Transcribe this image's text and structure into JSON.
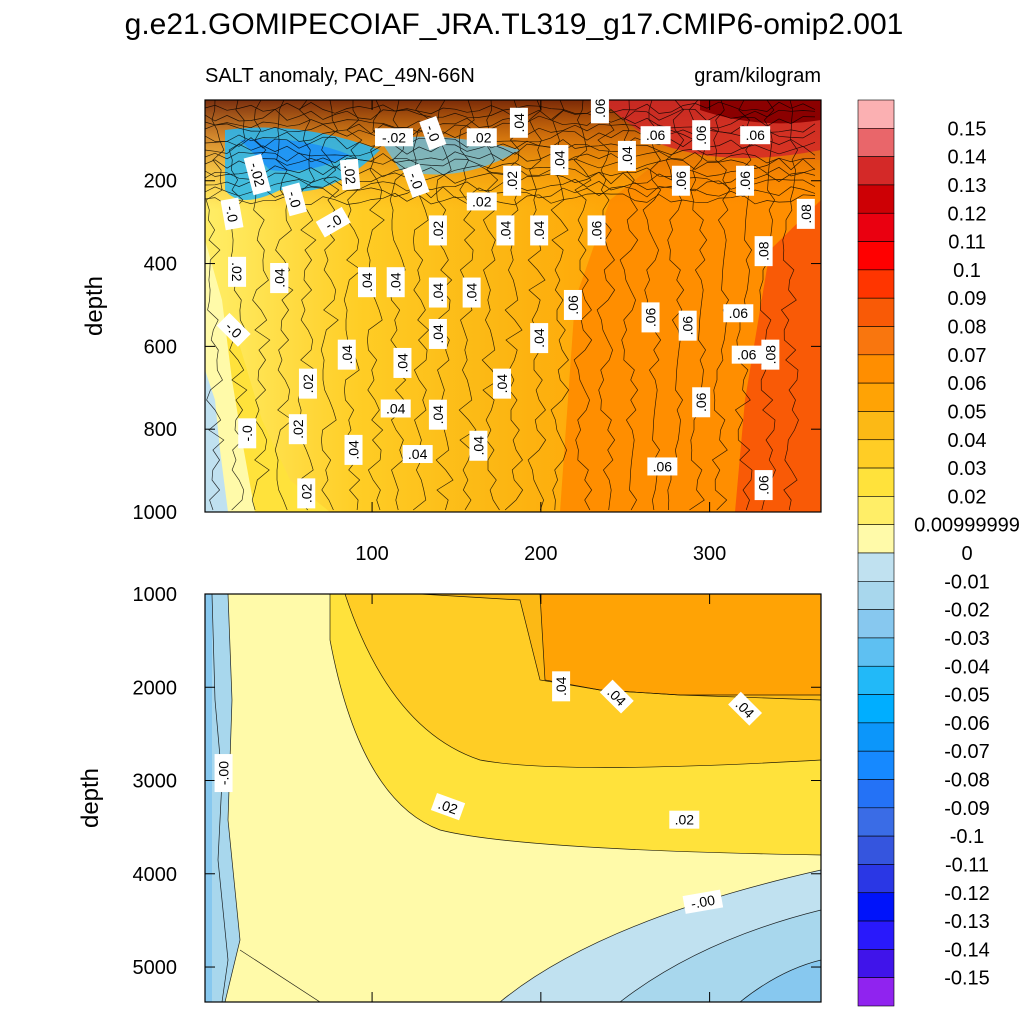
{
  "figure": {
    "title": "g.e21.GOMIPECOIAF_JRA.TL319_g17.CMIP6-omip2.001",
    "subtitle_left": "SALT anomaly, PAC_49N-66N",
    "subtitle_right": "gram/kilogram"
  },
  "chart_data": [
    {
      "type": "heatmap",
      "panel": "upper",
      "title": "SALT anomaly, PAC_49N-66N",
      "units": "gram/kilogram",
      "xlabel": "",
      "ylabel": "depth",
      "xlim": [
        1,
        366
      ],
      "ylim": [
        1000,
        5
      ],
      "y_reversed": true,
      "xticks": [
        100,
        200,
        300
      ],
      "yticks": [
        200,
        400,
        600,
        800,
        1000
      ],
      "contour_labels": [
        {
          "text": "-.02",
          "x": 32,
          "y": 185,
          "angle": 75
        },
        {
          "text": "-.0",
          "x": 17,
          "y": 280,
          "angle": 80
        },
        {
          "text": ".02",
          "x": 20,
          "y": 420,
          "angle": 90
        },
        {
          "text": "-.0",
          "x": 18,
          "y": 560,
          "angle": 45
        },
        {
          "text": "-.0",
          "x": 54,
          "y": 245,
          "angle": 75
        },
        {
          "text": "-.0",
          "x": 77,
          "y": 300,
          "angle": -30
        },
        {
          "text": ".02",
          "x": 87,
          "y": 185,
          "angle": 85
        },
        {
          "text": "-.02",
          "x": 113,
          "y": 95,
          "angle": 0
        },
        {
          "text": "-.0",
          "x": 136,
          "y": 85,
          "angle": 70
        },
        {
          "text": ".02",
          "x": 165,
          "y": 95,
          "angle": 0
        },
        {
          "text": ".04",
          "x": 187,
          "y": 60,
          "angle": -90
        },
        {
          "text": ".04",
          "x": 45,
          "y": 435,
          "angle": -90
        },
        {
          "text": ".04",
          "x": 45,
          "y": 435,
          "angle": -90
        },
        {
          "text": "-.0",
          "x": 126,
          "y": 200,
          "angle": 70
        },
        {
          "text": ".02",
          "x": 165,
          "y": 250,
          "angle": 0
        },
        {
          "text": ".02",
          "x": 183,
          "y": 200,
          "angle": -90
        },
        {
          "text": ".02",
          "x": 139,
          "y": 320,
          "angle": -90
        },
        {
          "text": ".04",
          "x": 179,
          "y": 320,
          "angle": -90
        },
        {
          "text": ".04",
          "x": 199,
          "y": 320,
          "angle": -90
        },
        {
          "text": ".04",
          "x": 114,
          "y": 445,
          "angle": -90
        },
        {
          "text": ".04",
          "x": 97,
          "y": 445,
          "angle": -90
        },
        {
          "text": ".04",
          "x": 139,
          "y": 470,
          "angle": -90
        },
        {
          "text": ".04",
          "x": 159,
          "y": 470,
          "angle": -90
        },
        {
          "text": ".04",
          "x": 139,
          "y": 570,
          "angle": -90
        },
        {
          "text": ".04",
          "x": 85,
          "y": 620,
          "angle": -90
        },
        {
          "text": ".04",
          "x": 118,
          "y": 640,
          "angle": -90
        },
        {
          "text": ".02",
          "x": 62,
          "y": 690,
          "angle": -90
        },
        {
          "text": ".04",
          "x": 114,
          "y": 750,
          "angle": 0
        },
        {
          "text": ".04",
          "x": 139,
          "y": 765,
          "angle": -90
        },
        {
          "text": ".02",
          "x": 56,
          "y": 800,
          "angle": -90
        },
        {
          "text": "-.0",
          "x": 26,
          "y": 810,
          "angle": -90
        },
        {
          "text": ".04",
          "x": 89,
          "y": 850,
          "angle": -90
        },
        {
          "text": ".04",
          "x": 127,
          "y": 860,
          "angle": 0
        },
        {
          "text": ".04",
          "x": 163,
          "y": 840,
          "angle": -90
        },
        {
          "text": ".02",
          "x": 61,
          "y": 955,
          "angle": -90
        },
        {
          "text": ".04",
          "x": 199,
          "y": 580,
          "angle": -90
        },
        {
          "text": ".04",
          "x": 177,
          "y": 690,
          "angle": -90
        },
        {
          "text": ".04",
          "x": 211,
          "y": 150,
          "angle": -90
        },
        {
          "text": ".06",
          "x": 235,
          "y": 25,
          "angle": -90
        },
        {
          "text": ".04",
          "x": 251,
          "y": 140,
          "angle": -90
        },
        {
          "text": ".06",
          "x": 268,
          "y": 90,
          "angle": 0
        },
        {
          "text": ".06",
          "x": 295,
          "y": 90,
          "angle": -90
        },
        {
          "text": ".06",
          "x": 283,
          "y": 200,
          "angle": -90
        },
        {
          "text": ".06",
          "x": 233,
          "y": 320,
          "angle": -90
        },
        {
          "text": ".06",
          "x": 219,
          "y": 500,
          "angle": -90
        },
        {
          "text": ".06",
          "x": 265,
          "y": 530,
          "angle": -90
        },
        {
          "text": ".06",
          "x": 287,
          "y": 550,
          "angle": -90
        },
        {
          "text": ".06",
          "x": 322,
          "y": 620,
          "angle": 0
        },
        {
          "text": ".06",
          "x": 317,
          "y": 520,
          "angle": 0
        },
        {
          "text": ".06",
          "x": 295,
          "y": 735,
          "angle": -90
        },
        {
          "text": ".06",
          "x": 272,
          "y": 890,
          "angle": 0
        },
        {
          "text": ".06",
          "x": 327,
          "y": 90,
          "angle": 0
        },
        {
          "text": ".06",
          "x": 321,
          "y": 200,
          "angle": -90
        },
        {
          "text": ".08",
          "x": 332,
          "y": 370,
          "angle": -90
        },
        {
          "text": ".08",
          "x": 357,
          "y": 280,
          "angle": -90
        },
        {
          "text": ".08",
          "x": 336,
          "y": 620,
          "angle": -90
        },
        {
          "text": ".06",
          "x": 332,
          "y": 935,
          "angle": -90
        }
      ]
    },
    {
      "type": "heatmap",
      "panel": "lower",
      "title": "",
      "units": "gram/kilogram",
      "xlabel": "",
      "ylabel": "depth",
      "xlim": [
        1,
        366
      ],
      "ylim": [
        5375,
        1000
      ],
      "y_reversed": true,
      "xticks": [
        100,
        200,
        300
      ],
      "yticks": [
        1000,
        2000,
        3000,
        4000,
        5000
      ],
      "contour_labels": [
        {
          "text": "-.00",
          "x": 12,
          "y": 2920,
          "angle": -90
        },
        {
          "text": ".02",
          "x": 145,
          "y": 3280,
          "angle": 20
        },
        {
          "text": ".02",
          "x": 285,
          "y": 3420,
          "angle": 0
        },
        {
          "text": ".04",
          "x": 212,
          "y": 1990,
          "angle": -90
        },
        {
          "text": ".04",
          "x": 245,
          "y": 2100,
          "angle": 45
        },
        {
          "text": ".04",
          "x": 321,
          "y": 2230,
          "angle": 45
        },
        {
          "text": "-.00",
          "x": 296,
          "y": 4300,
          "angle": -10
        }
      ]
    }
  ],
  "colorbar": {
    "labels": [
      "0.15",
      "0.14",
      "0.13",
      "0.12",
      "0.11",
      "0.1",
      "0.09",
      "0.08",
      "0.07",
      "0.06",
      "0.05",
      "0.04",
      "0.03",
      "0.02",
      "0.00999999",
      "0",
      "-0.01",
      "-0.02",
      "-0.03",
      "-0.04",
      "-0.05",
      "-0.06",
      "-0.07",
      "-0.08",
      "-0.09",
      "-0.1",
      "-0.11",
      "-0.12",
      "-0.13",
      "-0.14",
      "-0.15"
    ],
    "colors": [
      "#fbb0b2",
      "#e9666a",
      "#d42928",
      "#cd0005",
      "#ea0010",
      "#ff0000",
      "#ff3500",
      "#f95a06",
      "#f9760e",
      "#ff8e00",
      "#ffa305",
      "#fcb915",
      "#ffcd25",
      "#ffe23b",
      "#ffee67",
      "#fffaa9",
      "#c0e1f0",
      "#a8d7ed",
      "#87c8ef",
      "#5ec0f2",
      "#22b9f8",
      "#00aeff",
      "#0c96fa",
      "#1689ff",
      "#2472f6",
      "#3a6ce6",
      "#3555de",
      "#2a37e5",
      "#0013fa",
      "#2919fb",
      "#4014ea",
      "#9023ef"
    ]
  },
  "colors": {
    "neg_deep": "#5ec0f2",
    "neg_light": "#c0e1f0",
    "pos_light": "#fffaa9",
    "pos_02": "#ffe23b",
    "pos_04": "#ffcd25",
    "pos_05": "#fcb915",
    "pos_06": "#ff8e00",
    "pos_08": "#f95a06",
    "pos_10": "#ff0000",
    "deep_red": "#8b0000"
  }
}
